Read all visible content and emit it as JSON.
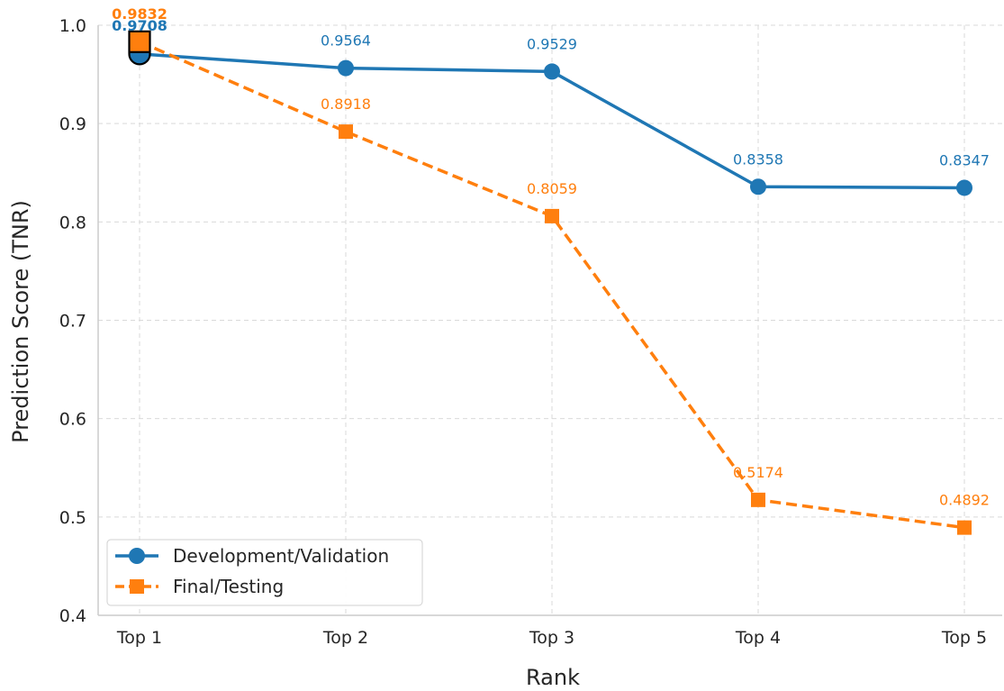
{
  "chart_data": {
    "type": "line",
    "categories": [
      "Top 1",
      "Top 2",
      "Top 3",
      "Top 4",
      "Top 5"
    ],
    "series": [
      {
        "name": "Development/Validation",
        "values": [
          0.9708,
          0.9564,
          0.9529,
          0.8358,
          0.8347
        ],
        "color": "#1f77b4",
        "marker": "circle",
        "line_style": "solid"
      },
      {
        "name": "Final/Testing",
        "values": [
          0.9832,
          0.8918,
          0.8059,
          0.5174,
          0.4892
        ],
        "color": "#ff7f0e",
        "marker": "square",
        "line_style": "dashed"
      }
    ],
    "data_labels": [
      [
        "0.9708",
        "0.9564",
        "0.9529",
        "0.8358",
        "0.8347"
      ],
      [
        "0.9832",
        "0.8918",
        "0.8059",
        "0.5174",
        "0.4892"
      ]
    ],
    "xlabel": "Rank",
    "ylabel": "Prediction Score (TNR)",
    "ylim": [
      0.4,
      1.0
    ],
    "yticks": [
      0.4,
      0.5,
      0.6,
      0.7,
      0.8,
      0.9,
      1.0
    ],
    "ytick_labels": [
      "0.4",
      "0.5",
      "0.6",
      "0.7",
      "0.8",
      "0.9",
      "1.0"
    ],
    "grid": true,
    "legend_position": "bottom-left"
  }
}
